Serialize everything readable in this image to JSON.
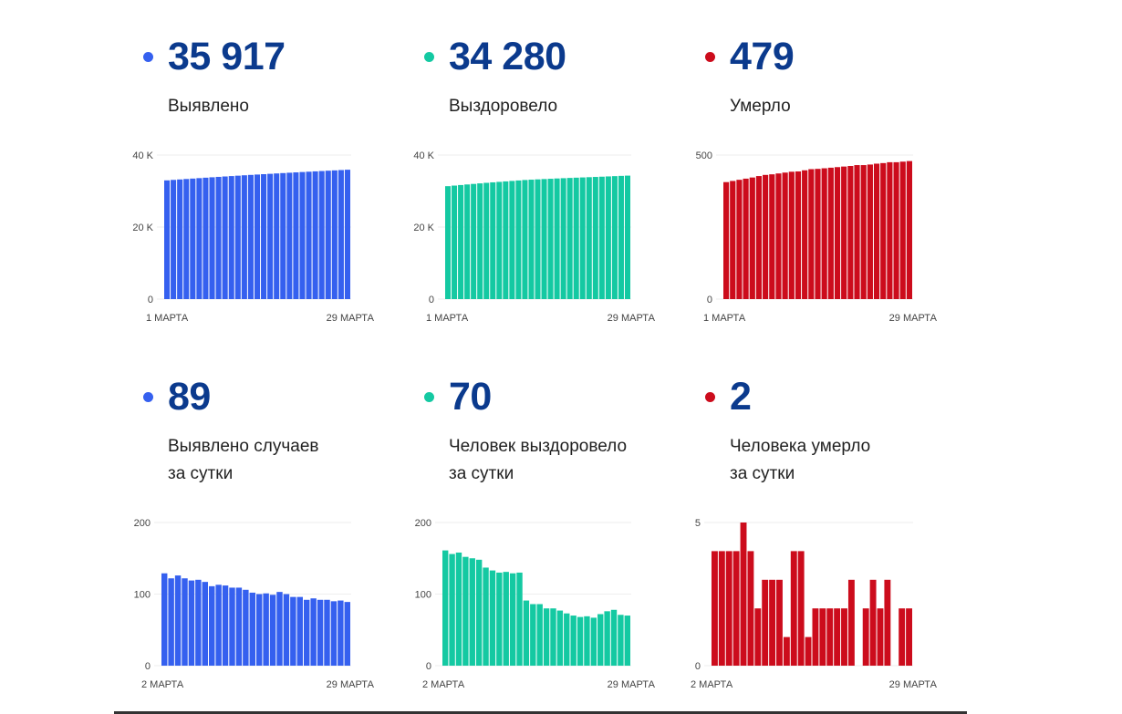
{
  "colors": {
    "cases": "#3560ef",
    "recovered": "#14c9a2",
    "deaths": "#cc0c1c",
    "number": "#0b3a8d"
  },
  "stats": [
    {
      "value": "35 917",
      "label": "Выявлено",
      "color": "#3560ef"
    },
    {
      "value": "34 280",
      "label": "Выздоровело",
      "color": "#14c9a2"
    },
    {
      "value": "479",
      "label": "Умерло",
      "color": "#cc0c1c"
    },
    {
      "value": "89",
      "label_line1": "Выявлено случаев",
      "label_line2": "за сутки",
      "color": "#3560ef"
    },
    {
      "value": "70",
      "label_line1": "Человек выздоровело",
      "label_line2": "за сутки",
      "color": "#14c9a2"
    },
    {
      "value": "2",
      "label_line1": "Человека умерло",
      "label_line2": "за сутки",
      "color": "#cc0c1c"
    }
  ],
  "chart_data": [
    {
      "type": "bar",
      "title": "Выявлено",
      "color": "#3560ef",
      "ylim": [
        0,
        40000
      ],
      "y_ticks": [
        {
          "value": 0,
          "label": "0"
        },
        {
          "value": 20000,
          "label": "20 K"
        },
        {
          "value": 40000,
          "label": "40 K"
        }
      ],
      "x_tick_labels": [
        "1 МАРТА",
        "29 МАРТА"
      ],
      "values": [
        32965,
        33094,
        33216,
        33342,
        33464,
        33583,
        33703,
        33820,
        33931,
        34044,
        34156,
        34265,
        34374,
        34480,
        34582,
        34682,
        34783,
        34882,
        34985,
        35085,
        35181,
        35277,
        35369,
        35463,
        35555,
        35647,
        35737,
        35828,
        35917
      ]
    },
    {
      "type": "bar",
      "title": "Выздоровело",
      "color": "#14c9a2",
      "ylim": [
        0,
        40000
      ],
      "y_ticks": [
        {
          "value": 0,
          "label": "0"
        },
        {
          "value": 20000,
          "label": "20 K"
        },
        {
          "value": 40000,
          "label": "40 K"
        }
      ],
      "x_tick_labels": [
        "1 МАРТА",
        "29 МАРТА"
      ],
      "values": [
        31351,
        31512,
        31668,
        31826,
        31978,
        32128,
        32276,
        32413,
        32546,
        32676,
        32807,
        32936,
        33066,
        33157,
        33243,
        33329,
        33409,
        33489,
        33566,
        33639,
        33709,
        33777,
        33846,
        33913,
        33985,
        34061,
        34139,
        34210,
        34280
      ]
    },
    {
      "type": "bar",
      "title": "Умерло",
      "color": "#cc0c1c",
      "ylim": [
        0,
        500
      ],
      "y_ticks": [
        {
          "value": 0,
          "label": "0"
        },
        {
          "value": 500,
          "label": "500"
        }
      ],
      "x_tick_labels": [
        "1 МАРТА",
        "29 МАРТА"
      ],
      "values": [
        406,
        410,
        414,
        418,
        422,
        427,
        431,
        433,
        436,
        439,
        442,
        443,
        447,
        451,
        452,
        454,
        456,
        458,
        460,
        462,
        465,
        465,
        467,
        470,
        472,
        475,
        475,
        477,
        479
      ]
    },
    {
      "type": "bar",
      "title": "Выявлено случаев за сутки",
      "color": "#3560ef",
      "ylim": [
        0,
        200
      ],
      "y_ticks": [
        {
          "value": 0,
          "label": "0"
        },
        {
          "value": 100,
          "label": "100"
        },
        {
          "value": 200,
          "label": "200"
        }
      ],
      "x_tick_labels": [
        "2 МАРТА",
        "29 МАРТА"
      ],
      "values": [
        129,
        122,
        126,
        122,
        119,
        120,
        117,
        111,
        113,
        112,
        109,
        109,
        106,
        102,
        100,
        101,
        99,
        103,
        100,
        96,
        96,
        92,
        94,
        92,
        92,
        90,
        91,
        89
      ]
    },
    {
      "type": "bar",
      "title": "Человек выздоровело за сутки",
      "color": "#14c9a2",
      "ylim": [
        0,
        200
      ],
      "y_ticks": [
        {
          "value": 0,
          "label": "0"
        },
        {
          "value": 100,
          "label": "100"
        },
        {
          "value": 200,
          "label": "200"
        }
      ],
      "x_tick_labels": [
        "2 МАРТА",
        "29 МАРТА"
      ],
      "values": [
        161,
        156,
        158,
        152,
        150,
        148,
        137,
        133,
        130,
        131,
        129,
        130,
        91,
        86,
        86,
        80,
        80,
        77,
        73,
        70,
        68,
        69,
        67,
        72,
        76,
        78,
        71,
        70
      ]
    },
    {
      "type": "bar",
      "title": "Человека умерло за сутки",
      "color": "#cc0c1c",
      "ylim": [
        0,
        5
      ],
      "y_ticks": [
        {
          "value": 0,
          "label": "0"
        },
        {
          "value": 5,
          "label": "5"
        }
      ],
      "x_tick_labels": [
        "2 МАРТА",
        "29 МАРТА"
      ],
      "values": [
        4,
        4,
        4,
        4,
        5,
        4,
        2,
        3,
        3,
        3,
        1,
        4,
        4,
        1,
        2,
        2,
        2,
        2,
        2,
        3,
        0,
        2,
        3,
        2,
        3,
        0,
        2,
        2
      ]
    }
  ]
}
